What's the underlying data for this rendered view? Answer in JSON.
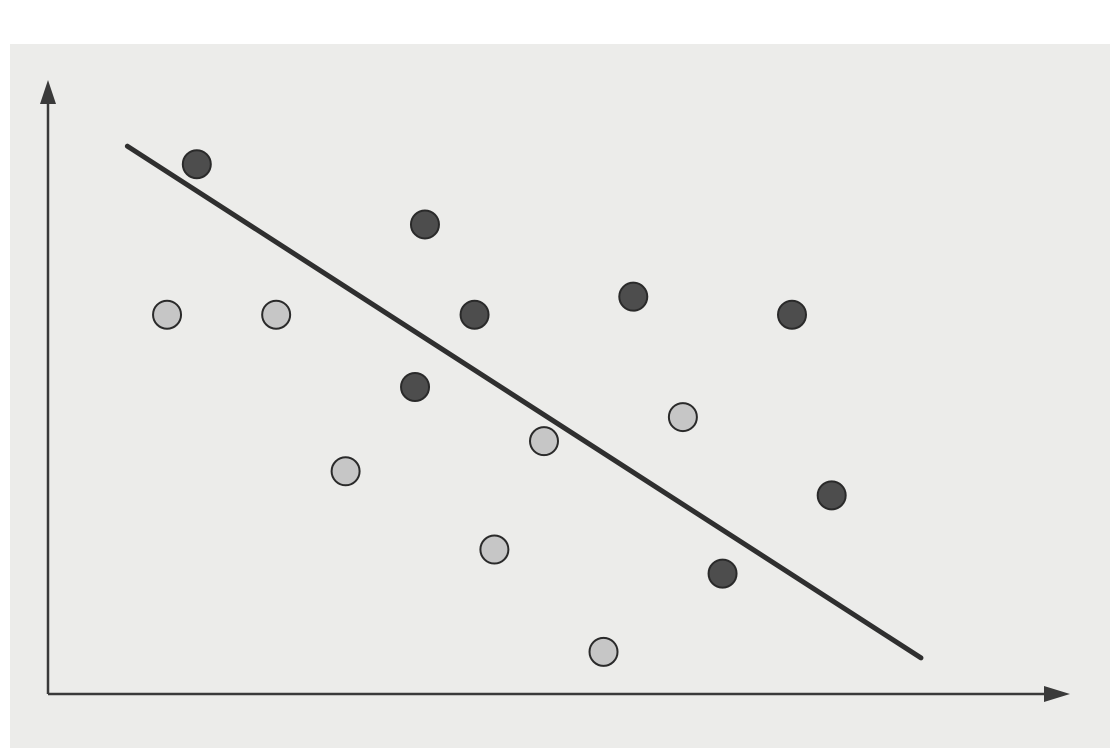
{
  "chart_data": {
    "type": "scatter",
    "title": "",
    "xlabel": "",
    "ylabel": "",
    "xlim": [
      0,
      100
    ],
    "ylim": [
      0,
      100
    ],
    "grid": false,
    "legend": "none",
    "series": [
      {
        "color": "#4d4d4d",
        "points": [
          {
            "x": 15,
            "y": 88
          },
          {
            "x": 38,
            "y": 78
          },
          {
            "x": 43,
            "y": 63
          },
          {
            "x": 59,
            "y": 66
          },
          {
            "x": 75,
            "y": 63
          },
          {
            "x": 37,
            "y": 51
          },
          {
            "x": 79,
            "y": 33
          },
          {
            "x": 68,
            "y": 20
          }
        ]
      },
      {
        "color": "#c6c6c6",
        "points": [
          {
            "x": 12,
            "y": 63
          },
          {
            "x": 23,
            "y": 63
          },
          {
            "x": 30,
            "y": 37
          },
          {
            "x": 50,
            "y": 42
          },
          {
            "x": 64,
            "y": 46
          },
          {
            "x": 45,
            "y": 24
          },
          {
            "x": 56,
            "y": 7
          }
        ]
      }
    ],
    "line": {
      "x1": 8,
      "y1": 91,
      "x2": 88,
      "y2": 6,
      "color": "#2f2f2f"
    }
  },
  "colors": {
    "axis": "#3a3a3a",
    "paper": "#ececea",
    "background": "#ffffff"
  }
}
